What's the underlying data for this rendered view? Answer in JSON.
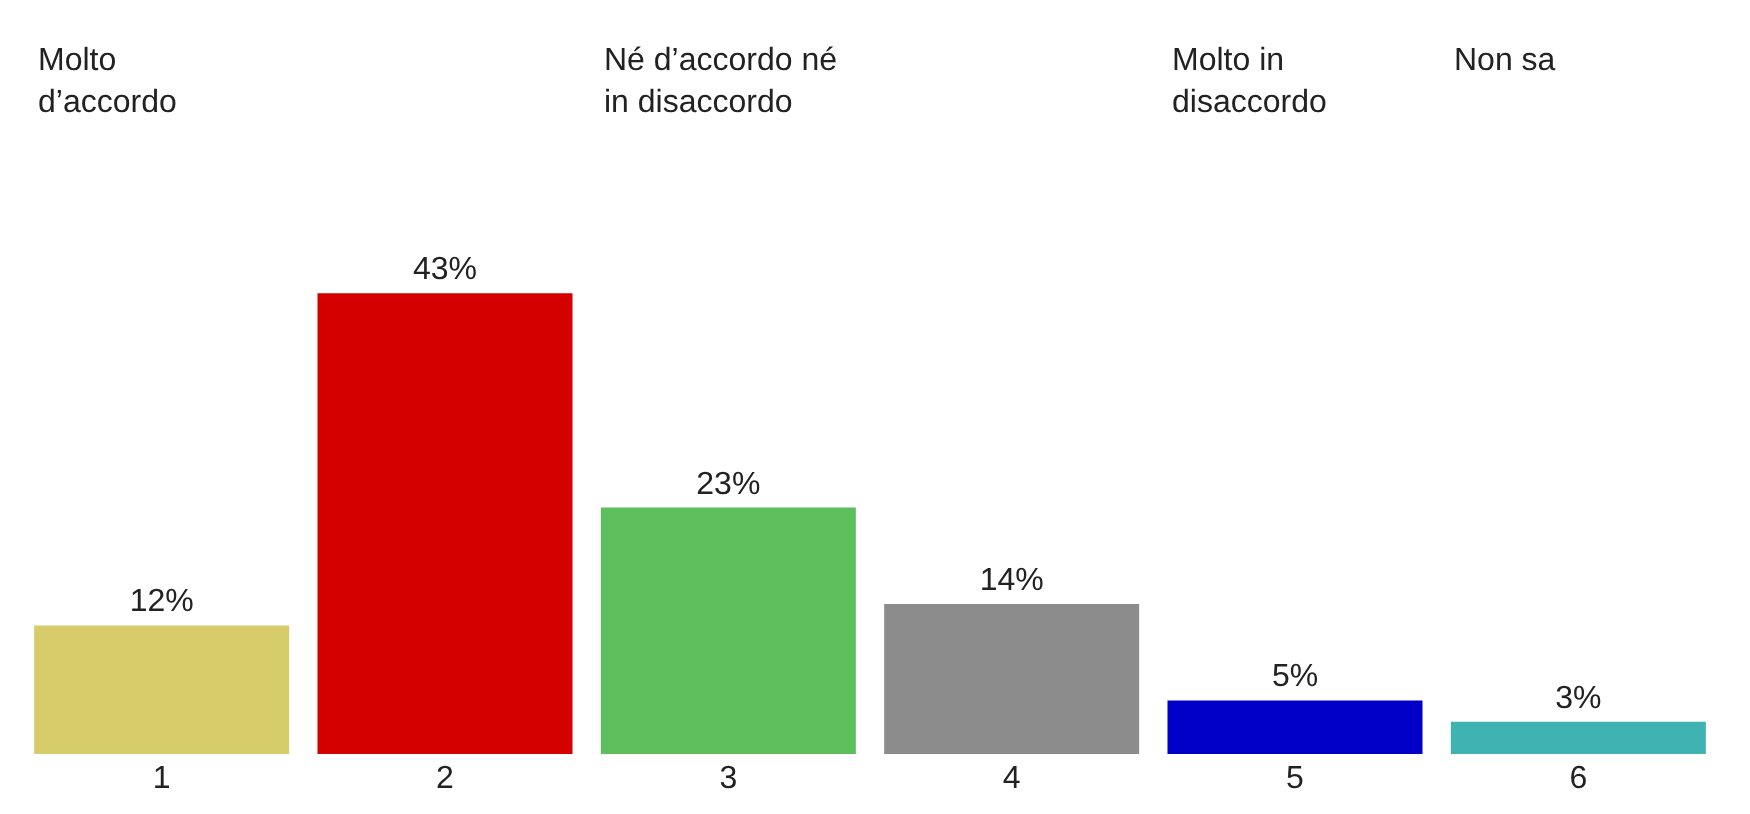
{
  "chart_data": {
    "type": "bar",
    "categories": [
      "1",
      "2",
      "3",
      "4",
      "5",
      "6"
    ],
    "values": [
      12,
      43,
      23,
      14,
      5,
      3
    ],
    "colors": [
      "#d6cc6a",
      "#d40000",
      "#5cbf5c",
      "#8c8c8c",
      "#0000c8",
      "#3fb2b2"
    ],
    "value_labels": [
      "12%",
      "43%",
      "23%",
      "14%",
      "5%",
      "3%"
    ],
    "annotations": [
      "Molto\nd’accordo",
      "Né d’accordo né\nin disaccordo",
      "Molto in\ndisaccordo",
      "Non sa"
    ],
    "legend": false
  }
}
